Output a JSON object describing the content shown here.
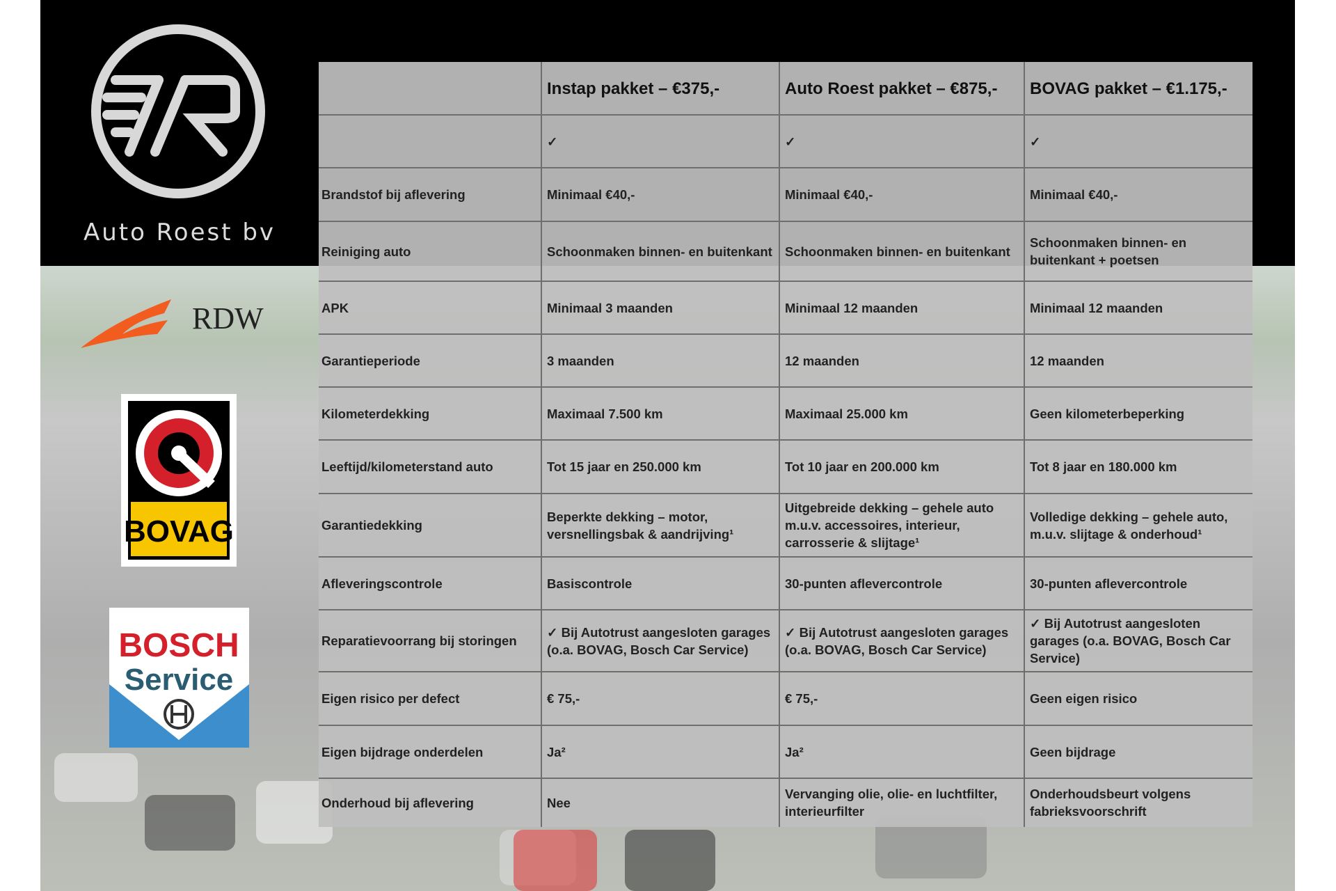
{
  "brand": {
    "name": "Auto Roest bv"
  },
  "logos": {
    "rdw": "RDW",
    "bovag": "BOVAG",
    "bosch_line1": "BOSCH",
    "bosch_line2": "Service"
  },
  "colors": {
    "table_bg": "#bebebe",
    "rdw_orange": "#f25c1f",
    "bovag_yellow": "#f7c600",
    "bosch_red": "#d4202a",
    "bosch_blue": "#3c8fcc"
  },
  "table": {
    "headers": [
      "",
      "Instap pakket – €375,-",
      "Auto Roest pakket – €875,-",
      "BOVAG pakket – €1.175,-"
    ],
    "rows": [
      [
        "",
        "✓",
        "✓",
        "✓"
      ],
      [
        "Brandstof bij aflevering",
        "Minimaal €40,-",
        "Minimaal €40,-",
        "Minimaal €40,-"
      ],
      [
        "Reiniging auto",
        "Schoonmaken binnen- en buitenkant",
        "Schoonmaken binnen- en buitenkant",
        "Schoonmaken binnen- en buitenkant + poetsen"
      ],
      [
        "APK",
        "Minimaal 3 maanden",
        "Minimaal 12 maanden",
        "Minimaal 12 maanden"
      ],
      [
        "Garantieperiode",
        "3 maanden",
        "12 maanden",
        "12 maanden"
      ],
      [
        "Kilometerdekking",
        "Maximaal 7.500 km",
        "Maximaal 25.000 km",
        "Geen kilometerbeperking"
      ],
      [
        "Leeftijd/kilometerstand auto",
        "Tot 15 jaar en 250.000 km",
        "Tot 10 jaar en 200.000 km",
        "Tot 8 jaar en 180.000 km"
      ],
      [
        "Garantiedekking",
        "Beperkte dekking – motor, versnellingsbak & aandrijving¹",
        "Uitgebreide dekking – gehele auto m.u.v. accessoires, interieur, carrosserie & slijtage¹",
        "Volledige dekking – gehele auto, m.u.v. slijtage & onderhoud¹"
      ],
      [
        "Afleveringscontrole",
        "Basiscontrole",
        "30-punten aflevercontrole",
        "30-punten aflevercontrole"
      ],
      [
        "Reparatievoorrang bij storingen",
        "✓ Bij Autotrust aangesloten garages (o.a. BOVAG, Bosch Car Service)",
        "✓ Bij Autotrust aangesloten garages (o.a. BOVAG, Bosch Car Service)",
        "✓ Bij Autotrust aangesloten garages (o.a. BOVAG, Bosch Car Service)"
      ],
      [
        "Eigen risico per defect",
        "€ 75,-",
        "€ 75,-",
        "Geen eigen risico"
      ],
      [
        "Eigen bijdrage onderdelen",
        "Ja²",
        "Ja²",
        "Geen bijdrage"
      ],
      [
        "Onderhoud bij aflevering",
        "Nee",
        "Vervanging olie, olie- en luchtfilter, interieurfilter",
        "Onderhoudsbeurt volgens fabrieksvoorschrift"
      ]
    ]
  }
}
